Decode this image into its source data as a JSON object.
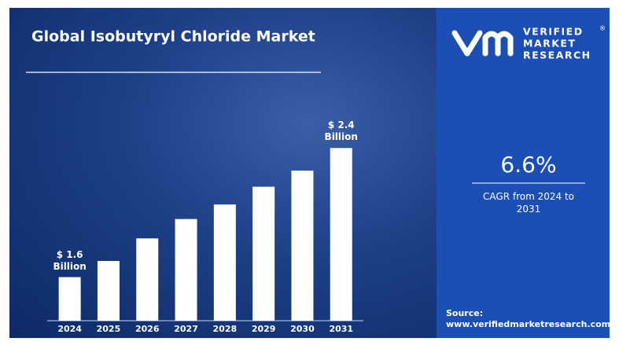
{
  "chart_data": {
    "type": "bar",
    "title": "Global Isobutyryl Chloride Market",
    "categories": [
      "2024",
      "2025",
      "2026",
      "2027",
      "2028",
      "2029",
      "2030",
      "2031"
    ],
    "values": [
      1.6,
      1.7,
      1.84,
      1.96,
      2.05,
      2.16,
      2.26,
      2.4
    ],
    "value_labels": [
      "$ 1.6 Billion",
      null,
      null,
      null,
      null,
      null,
      null,
      "$ 2.4 Billion"
    ],
    "color": "#ffffff",
    "ylim": [
      1.33,
      2.83
    ]
  },
  "sidebar": {
    "brand_lines": [
      "VERIFIED",
      "MARKET",
      "RESEARCH"
    ],
    "brand_mark": "®",
    "cagr_value": "6.6%",
    "cagr_caption": "CAGR from 2024 to 2031",
    "source_label": "Source:",
    "source_url": "www.verifiedmarketresearch.com"
  }
}
